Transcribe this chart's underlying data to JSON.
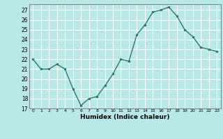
{
  "x": [
    0,
    1,
    2,
    3,
    4,
    5,
    6,
    7,
    8,
    9,
    10,
    11,
    12,
    13,
    14,
    15,
    16,
    17,
    18,
    19,
    20,
    21,
    22,
    23
  ],
  "y": [
    22,
    21,
    21,
    21.5,
    21,
    19,
    17.3,
    18,
    18.2,
    19.3,
    20.5,
    22,
    21.8,
    24.5,
    25.5,
    26.8,
    27,
    27.3,
    26.4,
    25,
    24.3,
    23.2,
    23,
    22.8
  ],
  "title": "",
  "xlabel": "Humidex (Indice chaleur)",
  "ylabel": "",
  "ylim": [
    17,
    27.6
  ],
  "yticks": [
    17,
    18,
    19,
    20,
    21,
    22,
    23,
    24,
    25,
    26,
    27
  ],
  "xticks": [
    0,
    1,
    2,
    3,
    4,
    5,
    6,
    7,
    8,
    9,
    10,
    11,
    12,
    13,
    14,
    15,
    16,
    17,
    18,
    19,
    20,
    21,
    22,
    23
  ],
  "line_color": "#2d7a6a",
  "marker_color": "#2d7a6a",
  "bg_color": "#b8e8e8",
  "grid_color": "#ffffff",
  "axes_bg": "#b8e8e8",
  "spine_color": "#888888"
}
